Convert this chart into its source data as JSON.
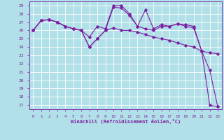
{
  "background_color": "#b2e0e8",
  "line_color": "#7b1fa2",
  "grid_color": "#ffffff",
  "xlim": [
    -0.5,
    23.5
  ],
  "ylim": [
    16.5,
    29.5
  ],
  "yticks": [
    17,
    18,
    19,
    20,
    21,
    22,
    23,
    24,
    25,
    26,
    27,
    28,
    29
  ],
  "xticks": [
    0,
    1,
    2,
    3,
    4,
    5,
    6,
    7,
    8,
    9,
    10,
    11,
    12,
    13,
    14,
    15,
    16,
    17,
    18,
    19,
    20,
    21,
    22,
    23
  ],
  "xlabel": "Windchill (Refroidissement éolien,°C)",
  "series": [
    {
      "x": [
        0,
        1,
        2,
        3,
        4,
        5,
        6,
        7,
        8,
        9,
        10,
        11,
        12,
        13,
        14,
        15,
        16,
        17,
        18,
        19,
        20,
        21,
        22,
        23
      ],
      "y": [
        26.0,
        27.2,
        27.3,
        27.0,
        26.5,
        26.2,
        26.0,
        25.2,
        26.5,
        26.2,
        29.0,
        29.0,
        28.0,
        26.5,
        28.5,
        26.2,
        26.7,
        26.5,
        26.8,
        26.7,
        26.5,
        23.5,
        17.0,
        16.8
      ]
    },
    {
      "x": [
        0,
        1,
        2,
        3,
        4,
        5,
        6,
        7,
        8,
        9,
        10,
        11,
        12,
        13,
        14,
        15,
        16,
        17,
        18,
        19,
        20,
        21,
        22,
        23
      ],
      "y": [
        26.0,
        27.2,
        27.3,
        27.0,
        26.5,
        26.2,
        26.0,
        24.0,
        25.0,
        26.0,
        28.8,
        28.7,
        27.8,
        26.5,
        26.2,
        26.0,
        26.5,
        26.5,
        26.8,
        26.5,
        26.3,
        23.5,
        21.2,
        16.8
      ]
    },
    {
      "x": [
        0,
        1,
        2,
        3,
        4,
        5,
        6,
        7,
        8,
        9,
        10,
        11,
        12,
        13,
        14,
        15,
        16,
        17,
        18,
        19,
        20,
        21,
        22,
        23
      ],
      "y": [
        26.0,
        27.2,
        27.3,
        27.0,
        26.5,
        26.2,
        26.0,
        24.0,
        25.0,
        26.0,
        26.3,
        26.0,
        26.0,
        25.8,
        25.5,
        25.2,
        25.0,
        24.8,
        24.5,
        24.2,
        24.0,
        23.5,
        23.3,
        23.2
      ]
    }
  ]
}
